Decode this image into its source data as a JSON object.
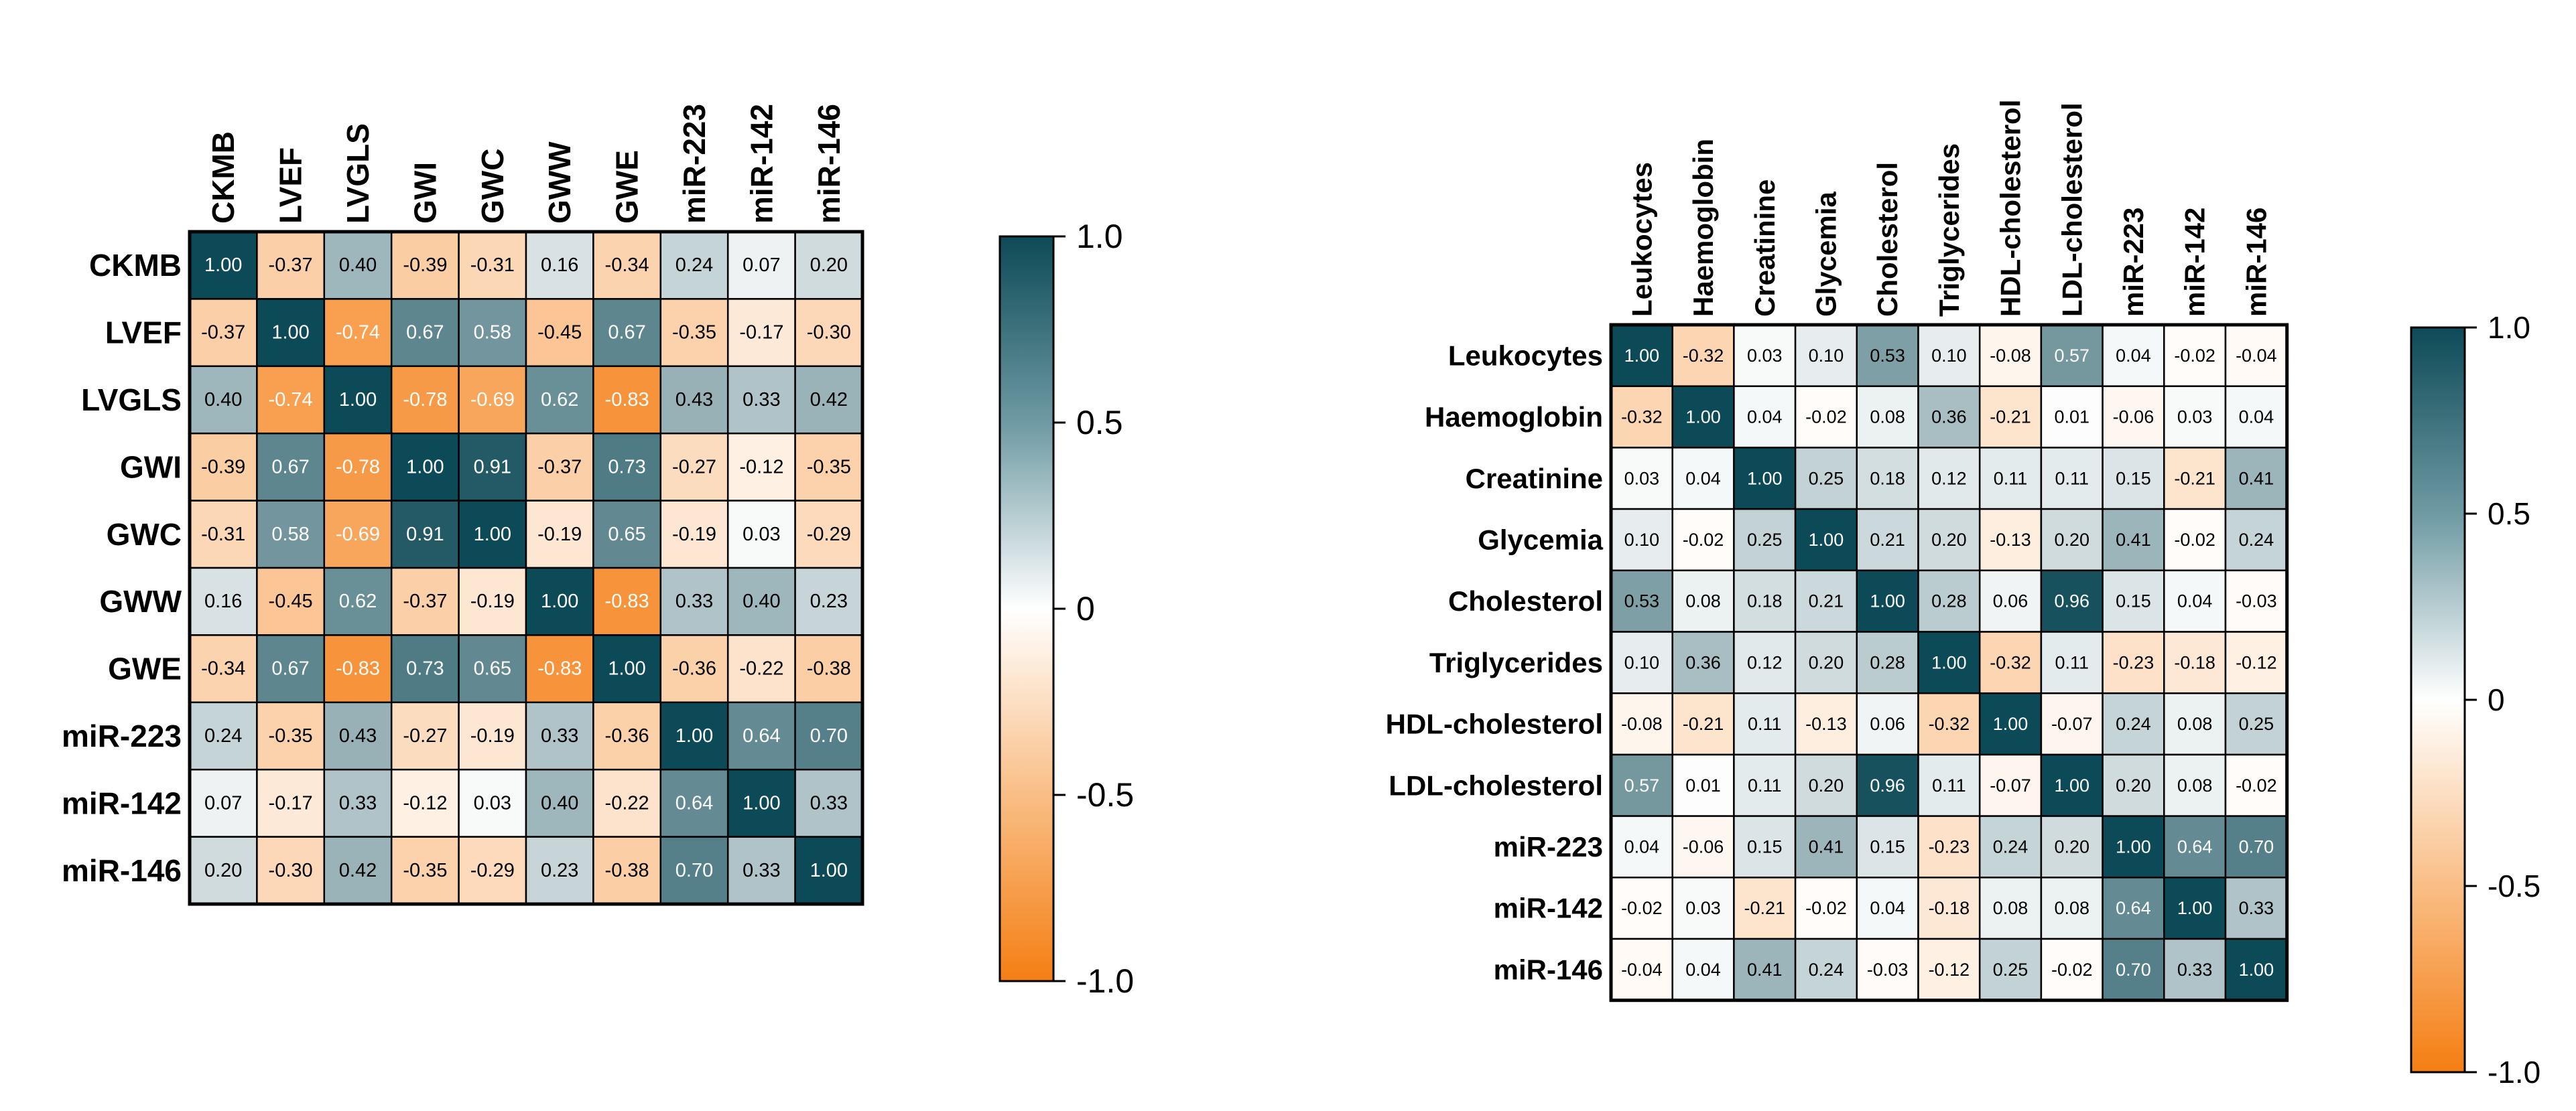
{
  "chart_data": [
    {
      "type": "heatmap",
      "title": "",
      "labels": [
        "CKMB",
        "LVEF",
        "LVGLS",
        "GWI",
        "GWC",
        "GWW",
        "GWE",
        "miR-223",
        "miR-142",
        "miR-146"
      ],
      "matrix": [
        [
          1.0,
          -0.37,
          0.4,
          -0.39,
          -0.31,
          0.16,
          -0.34,
          0.24,
          0.07,
          0.2
        ],
        [
          -0.37,
          1.0,
          -0.74,
          0.67,
          0.58,
          -0.45,
          0.67,
          -0.35,
          -0.17,
          -0.3
        ],
        [
          0.4,
          -0.74,
          1.0,
          -0.78,
          -0.69,
          0.62,
          -0.83,
          0.43,
          0.33,
          0.42
        ],
        [
          -0.39,
          0.67,
          -0.78,
          1.0,
          0.91,
          -0.37,
          0.73,
          -0.27,
          -0.12,
          -0.35
        ],
        [
          -0.31,
          0.58,
          -0.69,
          0.91,
          1.0,
          -0.19,
          0.65,
          -0.19,
          0.03,
          -0.29
        ],
        [
          0.16,
          -0.45,
          0.62,
          -0.37,
          -0.19,
          1.0,
          -0.83,
          0.33,
          0.4,
          0.23
        ],
        [
          -0.34,
          0.67,
          -0.83,
          0.73,
          0.65,
          -0.83,
          1.0,
          -0.36,
          -0.22,
          -0.38
        ],
        [
          0.24,
          -0.35,
          0.43,
          -0.27,
          -0.19,
          0.33,
          -0.36,
          1.0,
          0.64,
          0.7
        ],
        [
          0.07,
          -0.17,
          0.33,
          -0.12,
          0.03,
          0.4,
          -0.22,
          0.64,
          1.0,
          0.33
        ],
        [
          0.2,
          -0.3,
          0.42,
          -0.35,
          -0.29,
          0.23,
          -0.38,
          0.7,
          0.33,
          1.0
        ]
      ],
      "colorbar": {
        "range": [
          -1.0,
          1.0
        ],
        "ticks": [
          "1.0",
          "0.5",
          "0",
          "-0.5",
          "-1.0"
        ],
        "high_color": "#0d4a57",
        "mid_color": "#ffffff",
        "low_color": "#f57e13"
      }
    },
    {
      "type": "heatmap",
      "title": "",
      "labels": [
        "Leukocytes",
        "Haemoglobin",
        "Creatinine",
        "Glycemia",
        "Cholesterol",
        "Triglycerides",
        "HDL-cholesterol",
        "LDL-cholesterol",
        "miR-223",
        "miR-142",
        "miR-146"
      ],
      "matrix": [
        [
          1.0,
          -0.32,
          0.03,
          0.1,
          0.53,
          0.1,
          -0.08,
          0.57,
          0.04,
          -0.02,
          -0.04
        ],
        [
          -0.32,
          1.0,
          0.04,
          -0.02,
          0.08,
          0.36,
          -0.21,
          0.01,
          -0.06,
          0.03,
          0.04
        ],
        [
          0.03,
          0.04,
          1.0,
          0.25,
          0.18,
          0.12,
          0.11,
          0.11,
          0.15,
          -0.21,
          0.41
        ],
        [
          0.1,
          -0.02,
          0.25,
          1.0,
          0.21,
          0.2,
          -0.13,
          0.2,
          0.41,
          -0.02,
          0.24
        ],
        [
          0.53,
          0.08,
          0.18,
          0.21,
          1.0,
          0.28,
          0.06,
          0.96,
          0.15,
          0.04,
          -0.03
        ],
        [
          0.1,
          0.36,
          0.12,
          0.2,
          0.28,
          1.0,
          -0.32,
          0.11,
          -0.23,
          -0.18,
          -0.12
        ],
        [
          -0.08,
          -0.21,
          0.11,
          -0.13,
          0.06,
          -0.32,
          1.0,
          -0.07,
          0.24,
          0.08,
          0.25
        ],
        [
          0.57,
          0.01,
          0.11,
          0.2,
          0.96,
          0.11,
          -0.07,
          1.0,
          0.2,
          0.08,
          -0.02
        ],
        [
          0.04,
          -0.06,
          0.15,
          0.41,
          0.15,
          -0.23,
          0.24,
          0.2,
          1.0,
          0.64,
          0.7
        ],
        [
          -0.02,
          0.03,
          -0.21,
          -0.02,
          0.04,
          -0.18,
          0.08,
          0.08,
          0.64,
          1.0,
          0.33
        ],
        [
          -0.04,
          0.04,
          0.41,
          0.24,
          -0.03,
          -0.12,
          0.25,
          -0.02,
          0.7,
          0.33,
          1.0
        ]
      ],
      "colorbar": {
        "range": [
          -1.0,
          1.0
        ],
        "ticks": [
          "1.0",
          "0.5",
          "0",
          "-0.5",
          "-1.0"
        ],
        "high_color": "#0d4a57",
        "mid_color": "#ffffff",
        "low_color": "#f57e13"
      }
    }
  ]
}
